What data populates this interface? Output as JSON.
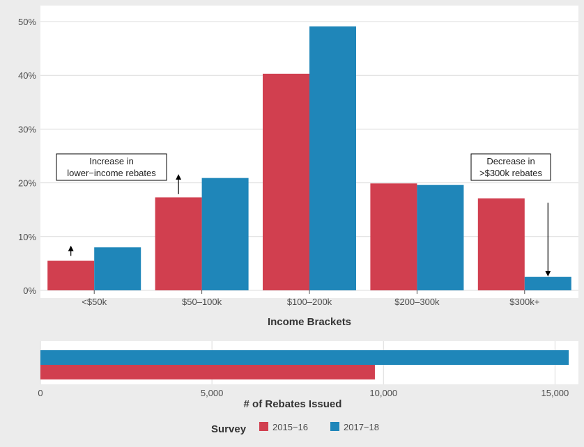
{
  "colors": {
    "background": "#ececec",
    "panel": "#ffffff",
    "grid": "#dcdcdc",
    "series_2015": "#d13f4f",
    "series_2017": "#1f86b9"
  },
  "chart_data": [
    {
      "type": "bar",
      "categories": [
        "<$50k",
        "$50–100k",
        "$100–200k",
        "$200–300k",
        "$300k+"
      ],
      "series": [
        {
          "name": "2015−16",
          "values": [
            5.5,
            17.3,
            40.3,
            19.9,
            17.1
          ]
        },
        {
          "name": "2017−18",
          "values": [
            8.0,
            20.9,
            49.1,
            19.6,
            2.5
          ]
        }
      ],
      "xlabel": "Income Brackets",
      "ylabel": "",
      "ylim": [
        0,
        50
      ],
      "y_ticks": [
        0,
        10,
        20,
        30,
        40,
        50
      ],
      "y_tick_labels": [
        "0%",
        "10%",
        "20%",
        "30%",
        "40%",
        "50%"
      ],
      "grid": true,
      "annotations": [
        {
          "lines": [
            "Increase in",
            "lower−income rebates"
          ],
          "category_index": 0
        },
        {
          "lines": [
            "Decrease in",
            ">$300k rebates"
          ],
          "category_index": 4
        }
      ]
    },
    {
      "type": "bar",
      "orientation": "horizontal",
      "series": [
        {
          "name": "2015−16",
          "values": [
            9750
          ]
        },
        {
          "name": "2017−18",
          "values": [
            15400
          ]
        }
      ],
      "xlabel": "# of Rebates Issued",
      "ylabel": "",
      "xlim": [
        0,
        15500
      ],
      "x_ticks": [
        0,
        5000,
        10000,
        15000
      ],
      "x_tick_labels": [
        "0",
        "5,000",
        "10,000",
        "15,000"
      ],
      "grid": true
    }
  ],
  "legend": {
    "title": "Survey",
    "position": "bottom",
    "items": [
      "2015−16",
      "2017−18"
    ]
  }
}
